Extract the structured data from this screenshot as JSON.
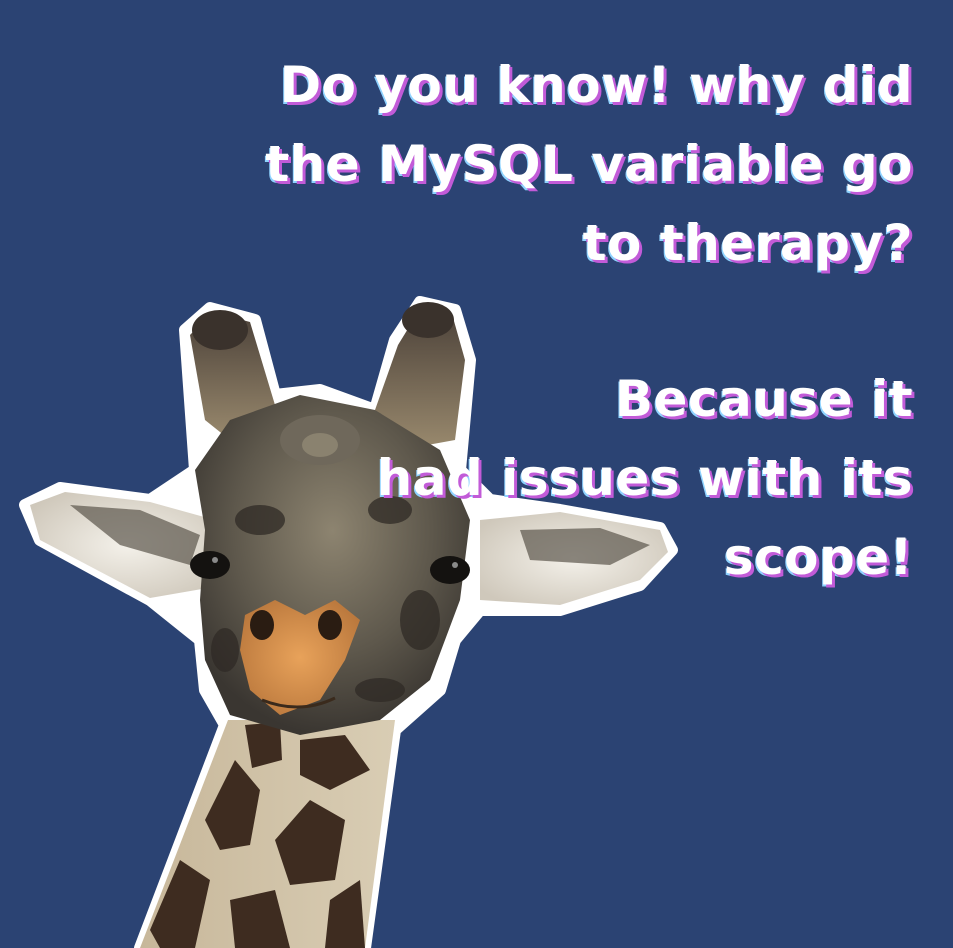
{
  "joke": {
    "question_lines": [
      "Do you know! why did",
      "the MySQL variable go",
      "to therapy?"
    ],
    "answer_lines": [
      "Because it",
      "had issues with its",
      "scope!"
    ]
  },
  "colors": {
    "background": "#2b4373",
    "text": "#ffffff",
    "text_shadow_pink": "#c25bd8",
    "text_shadow_blue": "#8fd3ff"
  },
  "illustration": {
    "subject": "giraffe-icon"
  }
}
